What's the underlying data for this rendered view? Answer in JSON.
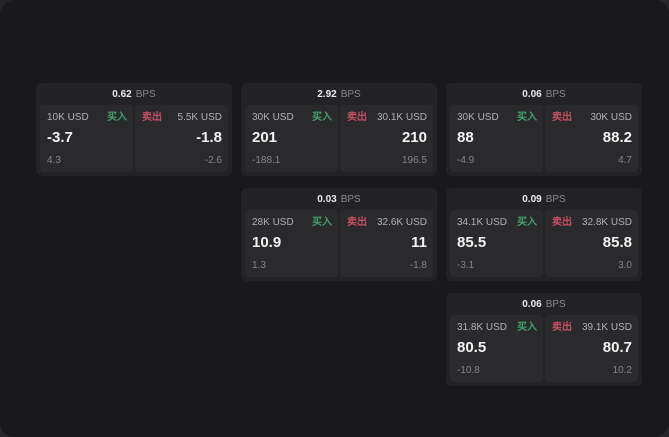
{
  "labels": {
    "buy": "买入",
    "sell": "卖出",
    "bps_unit": "BPS"
  },
  "colors": {
    "buy": "#43a06c",
    "sell": "#c44f62",
    "window_bg": "#19191b",
    "card_bg": "#232326",
    "panel_bg": "#2a2a2d"
  },
  "cards": [
    {
      "bps": "0.62",
      "buy": {
        "amount": "10K USD",
        "price": "-3.7",
        "delta": "4.3"
      },
      "sell": {
        "amount": "5.5K USD",
        "price": "-1.8",
        "delta": "-2.6"
      }
    },
    {
      "bps": "2.92",
      "buy": {
        "amount": "30K USD",
        "price": "201",
        "delta": "-188.1"
      },
      "sell": {
        "amount": "30.1K USD",
        "price": "210",
        "delta": "196.5"
      }
    },
    {
      "bps": "0.06",
      "buy": {
        "amount": "30K USD",
        "price": "88",
        "delta": "-4.9"
      },
      "sell": {
        "amount": "30K USD",
        "price": "88.2",
        "delta": "4.7"
      }
    },
    {
      "bps": "0.03",
      "buy": {
        "amount": "28K USD",
        "price": "10.9",
        "delta": "1.3"
      },
      "sell": {
        "amount": "32.6K USD",
        "price": "11",
        "delta": "-1.8"
      }
    },
    {
      "bps": "0.09",
      "buy": {
        "amount": "34.1K USD",
        "price": "85.5",
        "delta": "-3.1"
      },
      "sell": {
        "amount": "32.8K USD",
        "price": "85.8",
        "delta": "3.0"
      }
    },
    {
      "bps": "0.06",
      "buy": {
        "amount": "31.8K USD",
        "price": "80.5",
        "delta": "-10.8"
      },
      "sell": {
        "amount": "39.1K USD",
        "price": "80.7",
        "delta": "10.2"
      }
    }
  ]
}
